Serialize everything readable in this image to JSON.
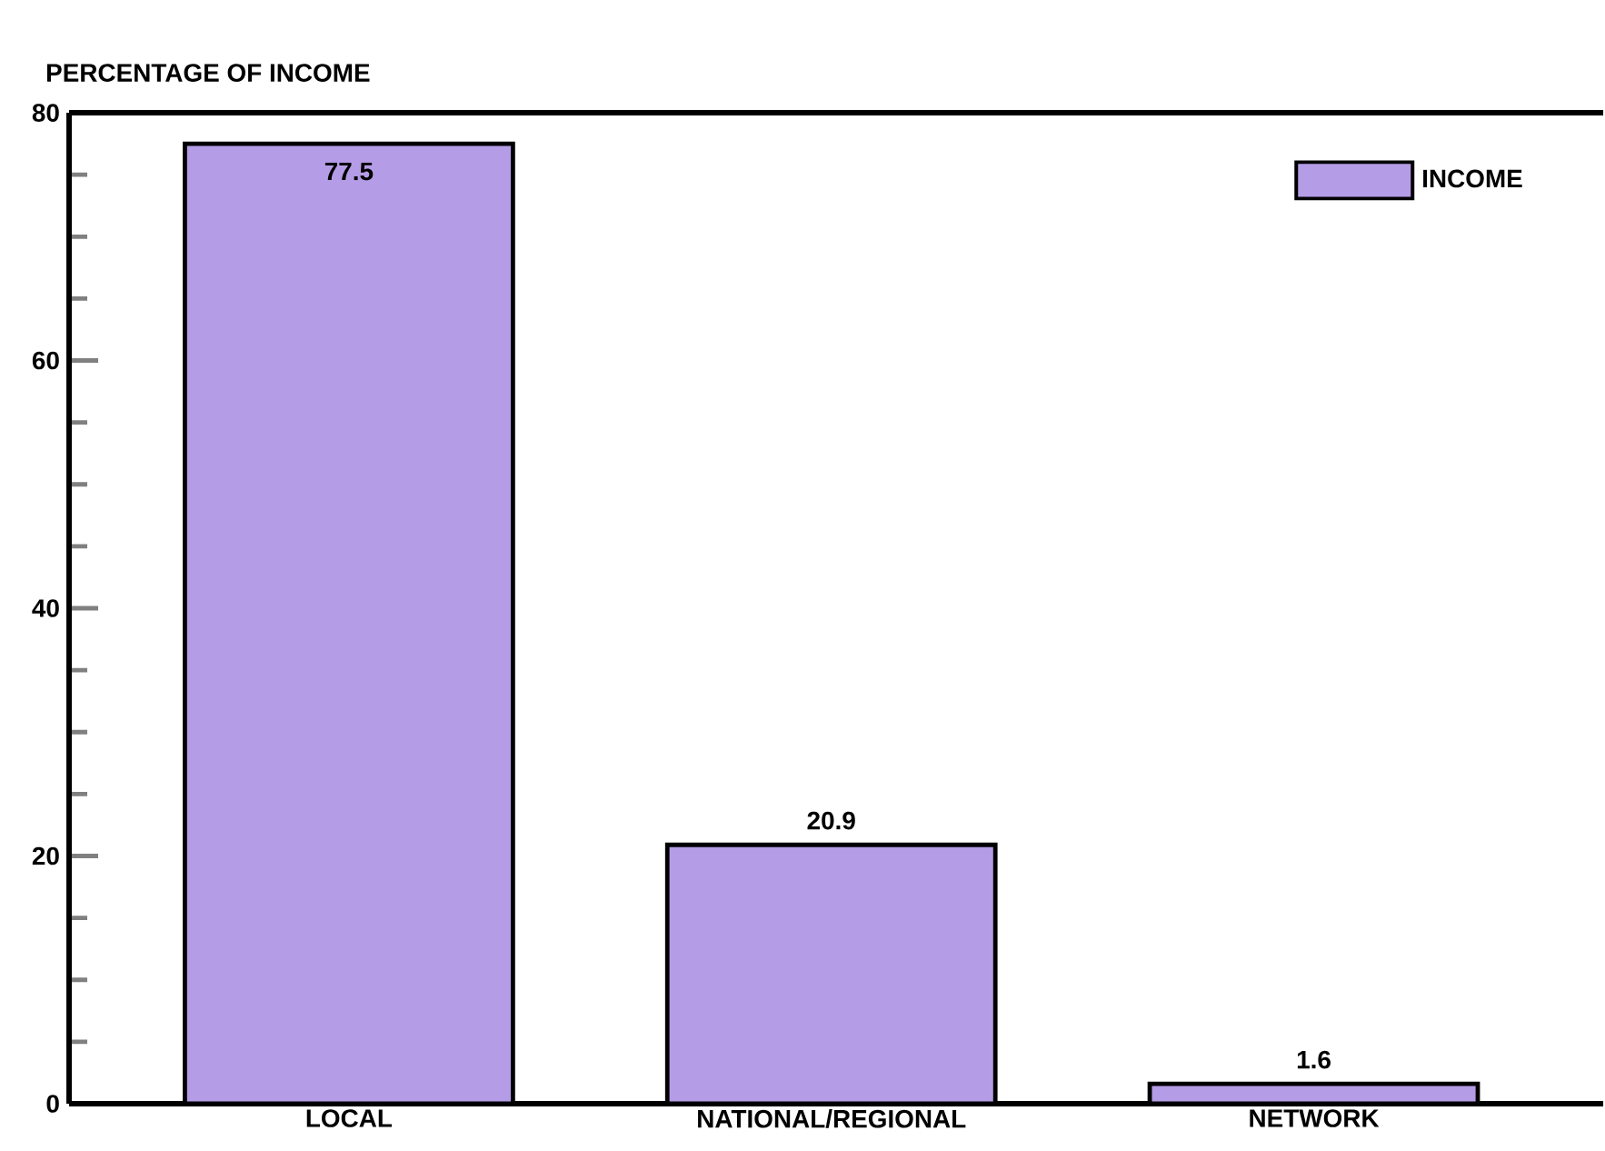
{
  "chart_data": {
    "type": "bar",
    "ylabel": "PERCENTAGE OF INCOME",
    "categories": [
      "LOCAL",
      "NATIONAL/REGIONAL",
      "NETWORK"
    ],
    "series": [
      {
        "name": "INCOME",
        "color": "#b59ce6",
        "values": [
          77.5,
          20.9,
          1.6
        ]
      }
    ],
    "ylim": [
      0,
      80
    ],
    "yticks": [
      0,
      20,
      40,
      60,
      80
    ],
    "data_labels": true,
    "legend": "top right"
  }
}
